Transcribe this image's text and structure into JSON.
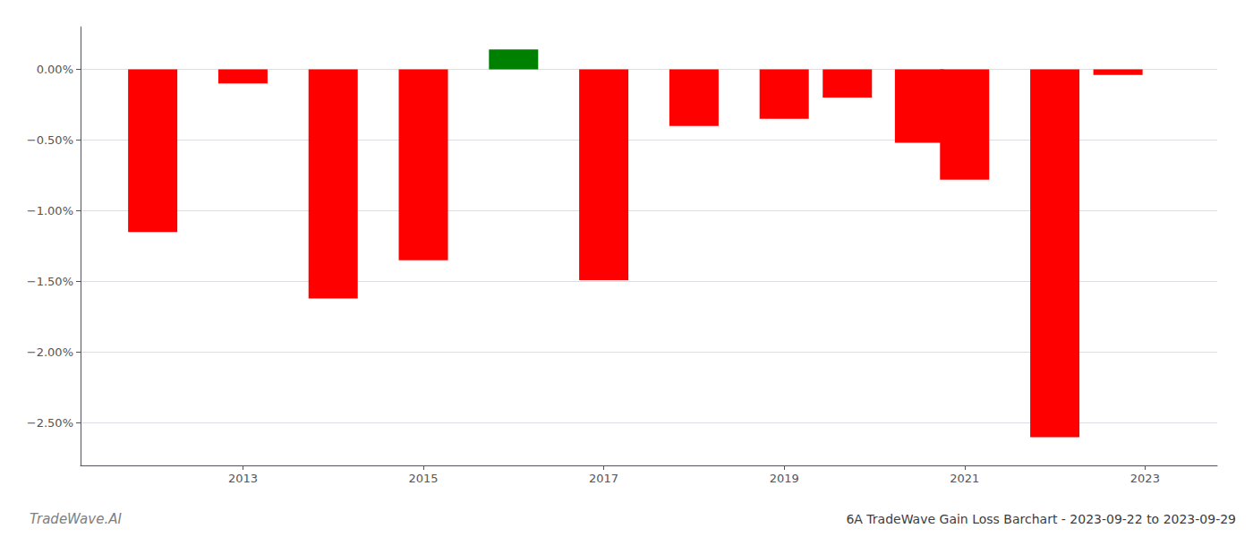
{
  "chart_data": {
    "type": "bar",
    "title": "6A TradeWave Gain Loss Barchart - 2023-09-22 to 2023-09-29",
    "annotations": [
      "TradeWave.AI"
    ],
    "x": [
      2012,
      2013,
      2014,
      2015,
      2016,
      2017,
      2018,
      2019,
      2019.7,
      2020.5,
      2021,
      2022,
      2022.7
    ],
    "values": [
      -1.15,
      -0.1,
      -1.62,
      -1.35,
      0.14,
      -1.49,
      -0.4,
      -0.35,
      -0.2,
      -0.52,
      -0.78,
      -2.6,
      -0.04
    ],
    "colors": [
      "#ff0000",
      "#ff0000",
      "#ff0000",
      "#ff0000",
      "#008000",
      "#ff0000",
      "#ff0000",
      "#ff0000",
      "#ff0000",
      "#ff0000",
      "#ff0000",
      "#ff0000",
      "#ff0000"
    ],
    "xlim": [
      2011.2,
      2023.8
    ],
    "xticks": [
      2013,
      2015,
      2017,
      2019,
      2021,
      2023
    ],
    "ylim": [
      -2.8,
      0.3
    ],
    "yticks": [
      {
        "value": 0.0,
        "label": "0.00%"
      },
      {
        "value": -0.5,
        "label": "−0.50%"
      },
      {
        "value": -1.0,
        "label": "−1.00%"
      },
      {
        "value": -1.5,
        "label": "−1.50%"
      },
      {
        "value": -2.0,
        "label": "−2.00%"
      },
      {
        "value": -2.5,
        "label": "−2.50%"
      }
    ],
    "grid": true
  }
}
